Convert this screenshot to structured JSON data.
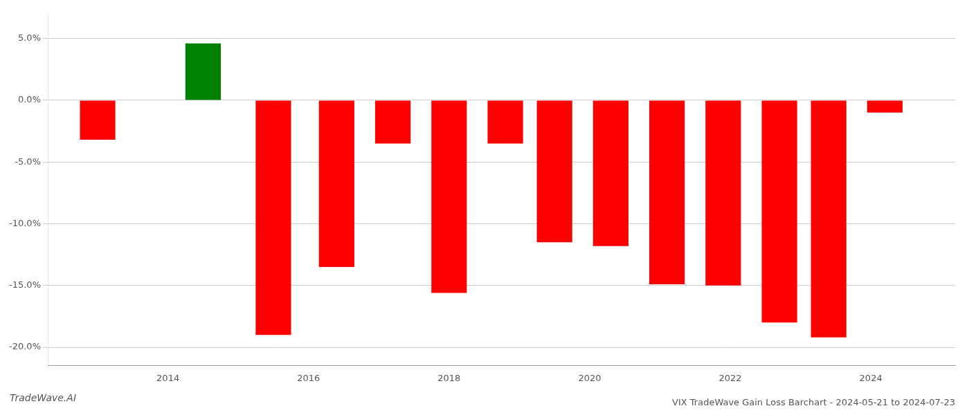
{
  "chart_data": {
    "type": "bar",
    "title": "VIX TradeWave Gain Loss Barchart - 2024-05-21 to 2024-07-23",
    "annotations": [
      "TradeWave.AI"
    ],
    "x": [
      2013.0,
      2014.5,
      2015.5,
      2016.4,
      2017.2,
      2018.0,
      2018.8,
      2019.5,
      2020.3,
      2021.1,
      2021.9,
      2022.7,
      2023.4,
      2024.2
    ],
    "values": [
      -3.2,
      4.6,
      -19.0,
      -13.5,
      -3.5,
      -15.6,
      -3.5,
      -11.5,
      -11.8,
      -14.9,
      -15.0,
      -18.0,
      -19.2,
      -1.0
    ],
    "colors": [
      "#ff0000",
      "#008000",
      "#ff0000",
      "#ff0000",
      "#ff0000",
      "#ff0000",
      "#ff0000",
      "#ff0000",
      "#ff0000",
      "#ff0000",
      "#ff0000",
      "#ff0000",
      "#ff0000",
      "#ff0000"
    ],
    "xlim": [
      2012.3,
      2025.2
    ],
    "xticks": [
      2014,
      2016,
      2018,
      2020,
      2022,
      2024
    ],
    "ylim": [
      -21.5,
      7.0
    ],
    "yticks": [
      {
        "value": 5.0,
        "label": "5.0%"
      },
      {
        "value": 0.0,
        "label": "0.0%"
      },
      {
        "value": -5.0,
        "label": "-5.0%"
      },
      {
        "value": -10.0,
        "label": "-10.0%"
      },
      {
        "value": -15.0,
        "label": "-15.0%"
      },
      {
        "value": -20.0,
        "label": "-20.0%"
      }
    ],
    "grid": true
  }
}
